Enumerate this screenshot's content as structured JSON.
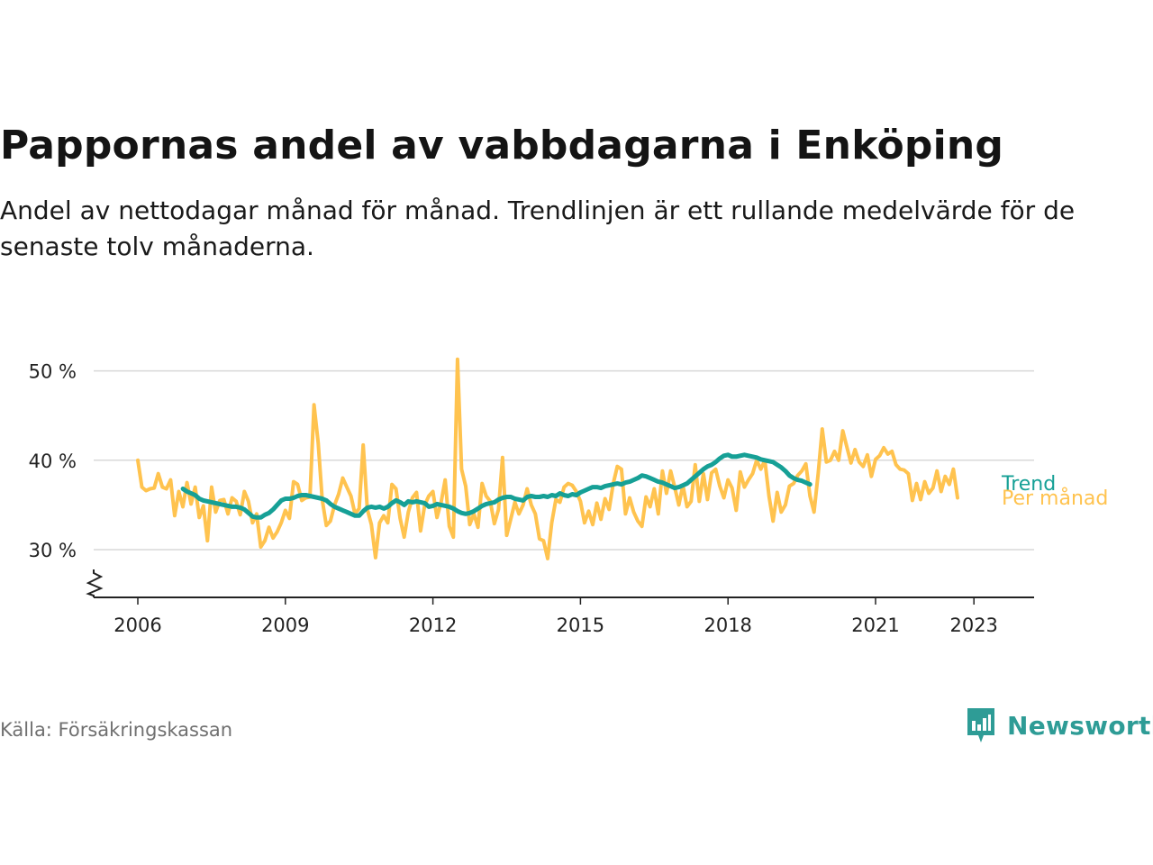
{
  "title": "Pappornas andel av vabbdagarna i Enköping",
  "subtitle": "Andel av nettodagar månad för månad. Trendlinjen är ett rullande medelvärde för de senaste tolv månaderna.",
  "source": "Källa: Försäkringskassan",
  "brand": {
    "name": "Newsworthy",
    "icon": "newsworthy-logo-icon"
  },
  "colors": {
    "monthly": "#ffc34f",
    "trend": "#16a096",
    "grid": "#d9d9d9",
    "axis": "#222222"
  },
  "chart_data": {
    "type": "line",
    "title": "Pappornas andel av vabbdagarna i Enköping",
    "xlabel": "",
    "ylabel": "",
    "xlim": [
      2005.1,
      2023.9
    ],
    "ylim": [
      25,
      50
    ],
    "y_ticks": [
      {
        "value": 30,
        "label": "30 %"
      },
      {
        "value": 40,
        "label": "40 %"
      },
      {
        "value": 50,
        "label": "50 %"
      }
    ],
    "x_ticks": [
      {
        "value": 2006,
        "label": "2006"
      },
      {
        "value": 2009,
        "label": "2009"
      },
      {
        "value": 2012,
        "label": "2012"
      },
      {
        "value": 2015,
        "label": "2015"
      },
      {
        "value": 2018,
        "label": "2018"
      },
      {
        "value": 2021,
        "label": "2021"
      },
      {
        "value": 2023,
        "label": "2023"
      }
    ],
    "axis_break": true,
    "grid": true,
    "series": [
      {
        "name": "Per månad",
        "color": "#ffc34f",
        "x_start": 2006.0,
        "step": 0.08333,
        "values": [
          40.0,
          37.0,
          36.6,
          36.8,
          36.9,
          38.5,
          37.0,
          36.8,
          37.8,
          33.8,
          36.5,
          34.8,
          37.5,
          35.1,
          37.0,
          33.6,
          34.9,
          31.0,
          37.0,
          34.2,
          35.5,
          35.6,
          34.0,
          35.8,
          35.4,
          33.9,
          36.5,
          35.4,
          33.0,
          34.0,
          30.3,
          31.0,
          32.5,
          31.3,
          32.0,
          33.0,
          34.4,
          33.5,
          37.6,
          37.3,
          35.5,
          35.8,
          35.9,
          46.2,
          42.0,
          35.6,
          32.7,
          33.2,
          35.0,
          36.2,
          38.0,
          37.0,
          36.0,
          34.0,
          34.6,
          41.7,
          34.5,
          32.8,
          29.1,
          33.0,
          33.8,
          33.0,
          37.3,
          36.8,
          33.5,
          31.4,
          34.2,
          35.8,
          36.4,
          32.1,
          35.0,
          36.0,
          36.5,
          33.6,
          35.3,
          37.8,
          32.6,
          31.4,
          51.3,
          39.0,
          37.1,
          32.8,
          34.0,
          32.5,
          37.4,
          36.0,
          35.4,
          32.9,
          34.5,
          40.3,
          31.6,
          33.4,
          35.3,
          34.0,
          35.0,
          36.8,
          35.0,
          34.0,
          31.2,
          31.0,
          29.0,
          33.0,
          35.6,
          35.3,
          37.0,
          37.4,
          37.2,
          36.5,
          35.4,
          33.0,
          34.3,
          32.8,
          35.2,
          33.4,
          35.7,
          34.5,
          37.4,
          39.3,
          39.0,
          34.0,
          35.8,
          34.2,
          33.2,
          32.6,
          35.9,
          34.8,
          36.8,
          34.0,
          38.8,
          36.3,
          38.8,
          37.0,
          35.0,
          37.2,
          34.8,
          35.4,
          39.5,
          35.4,
          38.5,
          35.6,
          38.6,
          39.0,
          37.1,
          35.8,
          37.8,
          36.9,
          34.4,
          38.7,
          37.0,
          37.8,
          38.5,
          40.0,
          39.0,
          40.0,
          36.0,
          33.2,
          36.4,
          34.2,
          35.0,
          37.1,
          37.4,
          38.3,
          38.8,
          39.6,
          36.0,
          34.2,
          38.5,
          43.5,
          39.8,
          40.0,
          41.0,
          40.0,
          43.3,
          41.5,
          39.7,
          41.2,
          39.8,
          39.3,
          40.6,
          38.2,
          40.1,
          40.5,
          41.4,
          40.7,
          41.0,
          39.5,
          39.0,
          38.9,
          38.5,
          35.5,
          37.4,
          35.6,
          37.6,
          36.3,
          36.9,
          38.8,
          36.5,
          38.2,
          37.3,
          39.0,
          35.8
        ]
      },
      {
        "name": "Trend",
        "color": "#16a096",
        "x_start": 2006.917,
        "step": 0.08333,
        "values": [
          36.8,
          36.5,
          36.3,
          36.1,
          35.7,
          35.5,
          35.4,
          35.3,
          35.2,
          35.1,
          35.0,
          34.9,
          34.8,
          34.8,
          34.7,
          34.5,
          34.1,
          33.7,
          33.6,
          33.6,
          33.9,
          34.1,
          34.5,
          35.0,
          35.5,
          35.7,
          35.7,
          35.8,
          36.0,
          36.1,
          36.1,
          36.0,
          35.9,
          35.8,
          35.7,
          35.5,
          35.1,
          34.8,
          34.6,
          34.4,
          34.2,
          34.0,
          33.8,
          33.8,
          34.3,
          34.7,
          34.8,
          34.7,
          34.8,
          34.6,
          34.8,
          35.2,
          35.5,
          35.3,
          35.0,
          35.4,
          35.3,
          35.4,
          35.3,
          35.2,
          34.8,
          34.9,
          35.1,
          35.0,
          34.9,
          34.8,
          34.6,
          34.3,
          34.1,
          34.0,
          34.1,
          34.3,
          34.6,
          34.9,
          35.1,
          35.2,
          35.3,
          35.6,
          35.8,
          35.9,
          35.9,
          35.7,
          35.6,
          35.5,
          35.9,
          36.0,
          35.9,
          35.9,
          36.0,
          35.9,
          36.1,
          36.0,
          36.3,
          36.1,
          36.0,
          36.2,
          36.1,
          36.4,
          36.6,
          36.8,
          37.0,
          37.0,
          36.9,
          37.1,
          37.2,
          37.3,
          37.4,
          37.3,
          37.5,
          37.6,
          37.8,
          38.0,
          38.3,
          38.2,
          38.0,
          37.8,
          37.6,
          37.5,
          37.3,
          37.1,
          36.9,
          37.0,
          37.2,
          37.4,
          37.8,
          38.2,
          38.6,
          39.0,
          39.3,
          39.5,
          39.8,
          40.2,
          40.5,
          40.6,
          40.4,
          40.4,
          40.5,
          40.6,
          40.5,
          40.4,
          40.3,
          40.1,
          40.0,
          39.9,
          39.8,
          39.5,
          39.2,
          38.8,
          38.3,
          38.0,
          37.8,
          37.7,
          37.5,
          37.3
        ]
      }
    ],
    "legend": [
      {
        "label": "Trend",
        "color": "#16a096"
      },
      {
        "label": "Per månad",
        "color": "#ffc34f"
      }
    ],
    "legend_placement": "right-of-lines"
  }
}
